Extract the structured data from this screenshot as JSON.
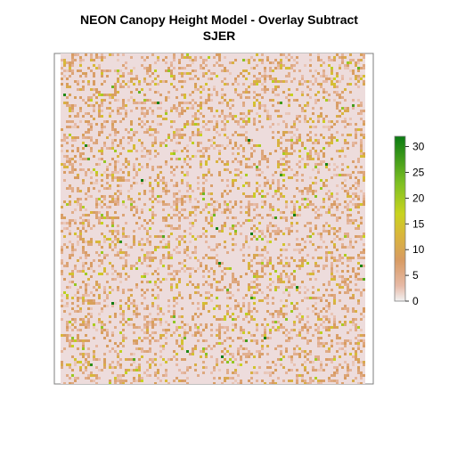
{
  "chart_data": {
    "type": "heatmap",
    "title": "NEON Canopy Height Model - Overlay Subtract",
    "subtitle": "SJER",
    "xlabel": "",
    "ylabel": "",
    "legend": {
      "position": "right",
      "range": [
        0,
        32
      ],
      "ticks": [
        0,
        5,
        10,
        15,
        20,
        25,
        30
      ],
      "tick_labels": [
        "0",
        "5",
        "10",
        "15",
        "20",
        "25",
        "30"
      ]
    },
    "color_scale": [
      {
        "value": 0,
        "color": "#f2f2f2"
      },
      {
        "value": 3,
        "color": "#e6b9a6"
      },
      {
        "value": 8,
        "color": "#d89b62"
      },
      {
        "value": 13,
        "color": "#d9b73a"
      },
      {
        "value": 17,
        "color": "#c8d31f"
      },
      {
        "value": 23,
        "color": "#7cbf23"
      },
      {
        "value": 32,
        "color": "#0a7a12"
      }
    ],
    "raster_background_color": "#eddcdc",
    "value_distribution": [
      {
        "range": [
          0,
          1
        ],
        "share": 0.7
      },
      {
        "range": [
          2,
          9
        ],
        "share": 0.24
      },
      {
        "range": [
          10,
          15
        ],
        "share": 0.045
      },
      {
        "range": [
          16,
          22
        ],
        "share": 0.012
      },
      {
        "range": [
          23,
          32
        ],
        "share": 0.003
      }
    ],
    "grid": false
  }
}
